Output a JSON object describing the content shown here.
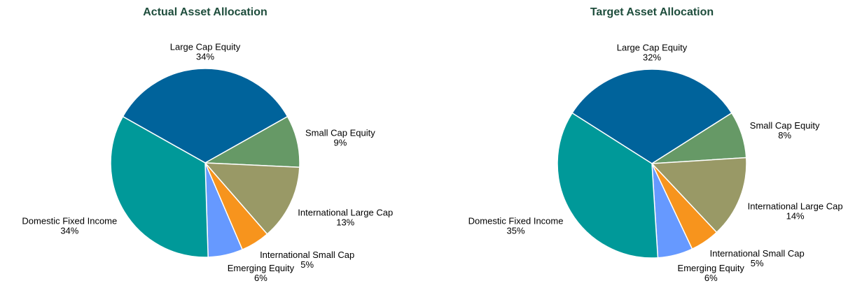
{
  "chart_data": [
    {
      "type": "pie",
      "title": "Actual Asset Allocation",
      "categories": [
        "Large Cap Equity",
        "Small Cap Equity",
        "International Large Cap",
        "International Small Cap",
        "Emerging Equity",
        "Domestic Fixed Income"
      ],
      "values": [
        34,
        9,
        13,
        5,
        6,
        34
      ],
      "value_labels": [
        "34%",
        "9%",
        "13%",
        "5%",
        "6%",
        "34%"
      ],
      "colors": [
        "#00639b",
        "#669966",
        "#999966",
        "#f7941d",
        "#6699ff",
        "#009999"
      ]
    },
    {
      "type": "pie",
      "title": "Target Asset Allocation",
      "categories": [
        "Large Cap Equity",
        "Small Cap Equity",
        "International Large Cap",
        "International Small Cap",
        "Emerging Equity",
        "Domestic Fixed Income"
      ],
      "values": [
        32,
        8,
        14,
        5,
        6,
        35
      ],
      "value_labels": [
        "32%",
        "8%",
        "14%",
        "5%",
        "6%",
        "35%"
      ],
      "colors": [
        "#00639b",
        "#669966",
        "#999966",
        "#f7941d",
        "#6699ff",
        "#009999"
      ]
    }
  ]
}
